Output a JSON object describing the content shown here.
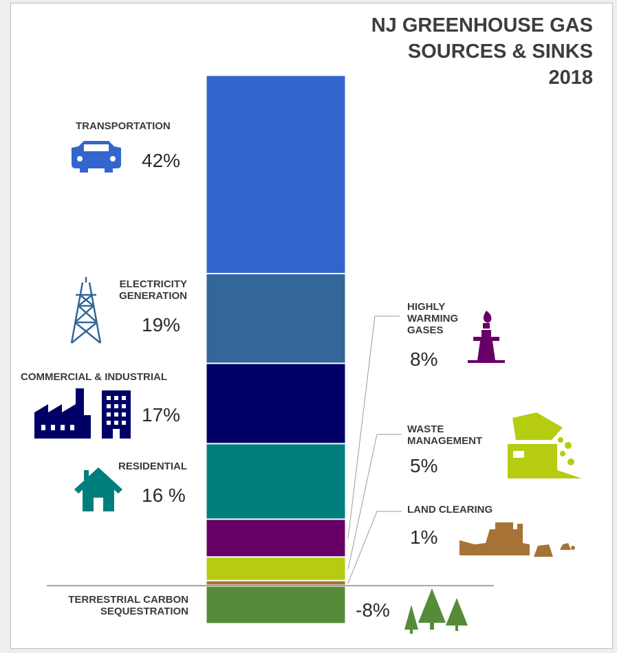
{
  "title": [
    "NJ GREENHOUSE GAS",
    "SOURCES & SINKS",
    "2018"
  ],
  "colors": {
    "transportation": "#3366cc",
    "electricity": "#336699",
    "commercial_industrial": "#000066",
    "residential": "#007e7e",
    "highly_warming": "#660066",
    "waste": "#b5cc10",
    "land_clearing": "#a67334",
    "sequestration": "#568b3a",
    "baseline": "#888888"
  },
  "chart_data": {
    "type": "bar",
    "stacked": true,
    "categories": [
      "TRANSPORTATION",
      "ELECTRICITY GENERATION",
      "COMMERCIAL & INDUSTRIAL",
      "RESIDENTIAL",
      "HIGHLY WARMING GASES",
      "WASTE MANAGEMENT",
      "LAND CLEARING",
      "TERRESTRIAL CARBON SEQUESTRATION"
    ],
    "values": [
      42,
      19,
      17,
      16,
      8,
      5,
      1,
      -8
    ],
    "value_labels": [
      "42%",
      "19%",
      "17%",
      "16 %",
      "8%",
      "5%",
      "1%",
      "-8%"
    ],
    "category_lines": [
      [
        "TRANSPORTATION"
      ],
      [
        "ELECTRICITY",
        "GENERATION"
      ],
      [
        "COMMERCIAL & INDUSTRIAL"
      ],
      [
        "RESIDENTIAL"
      ],
      [
        "HIGHLY",
        "WARMING",
        "GASES"
      ],
      [
        "WASTE",
        "MANAGEMENT"
      ],
      [
        "LAND CLEARING"
      ],
      [
        "TERRESTRIAL CARBON",
        "SEQUESTRATION"
      ]
    ],
    "icons": [
      "car-icon",
      "transmission-tower-icon",
      "factory-building-icon",
      "house-icon",
      "oil-rig-icon",
      "dump-truck-icon",
      "bulldozer-icon",
      "trees-icon"
    ],
    "title": "NJ GREENHOUSE GAS SOURCES & SINKS 2018",
    "xlabel": "",
    "ylabel": ""
  }
}
